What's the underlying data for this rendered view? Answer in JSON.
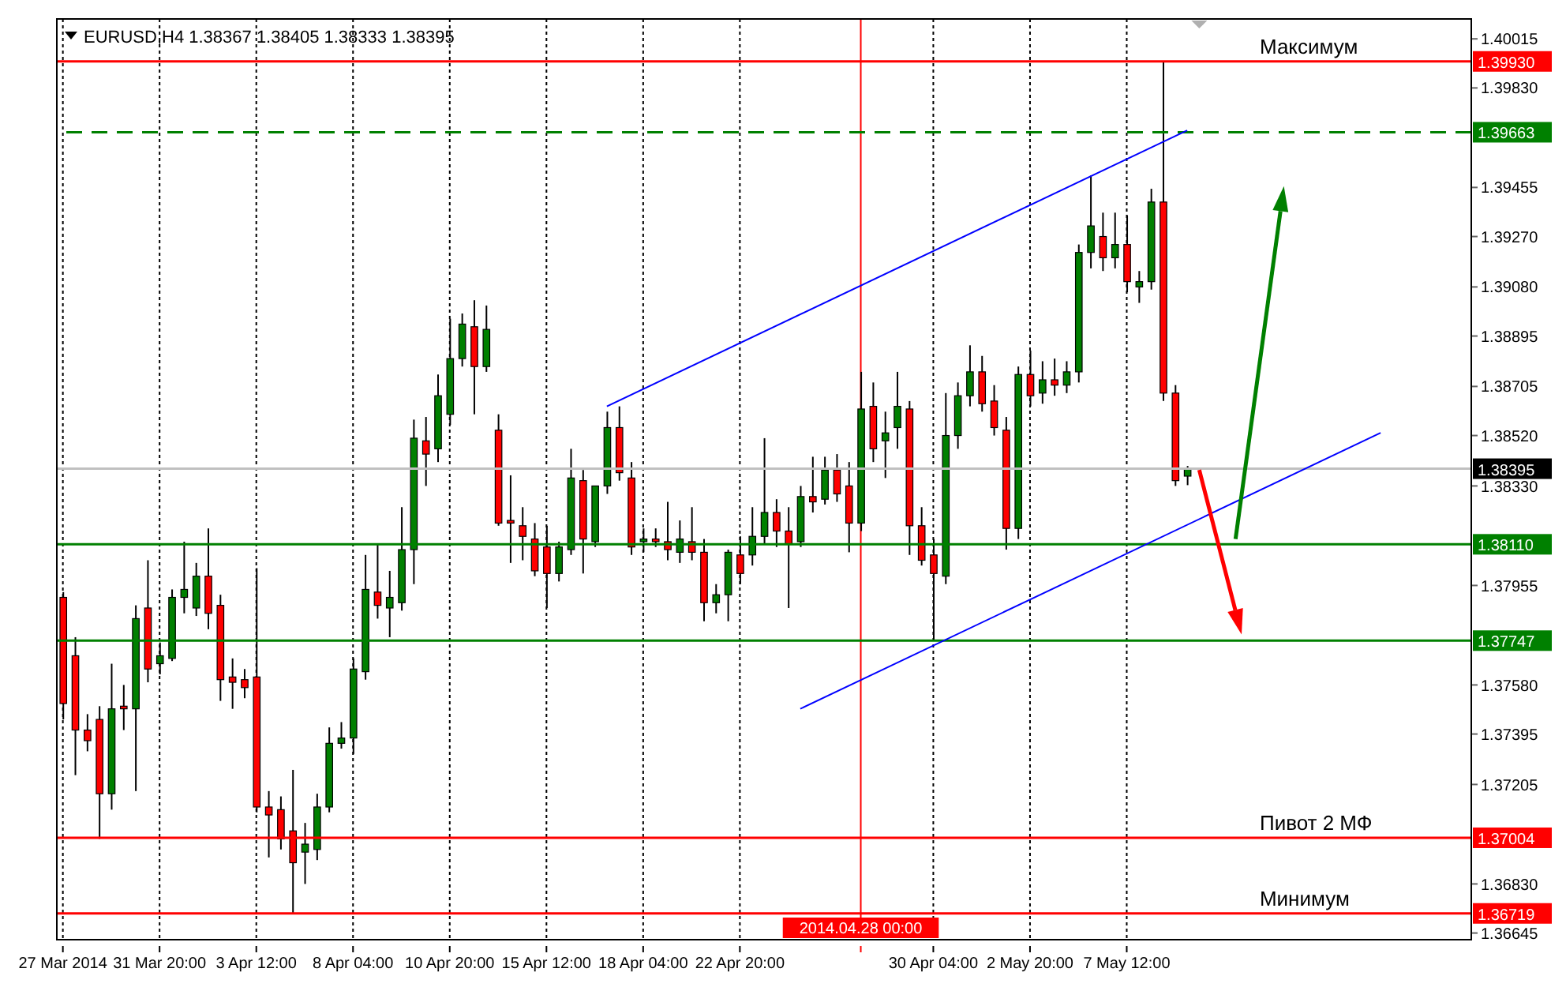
{
  "chart_data": {
    "type": "candlestick",
    "title": "EURUSD,H4 1.38367 1.38405 1.38333 1.38395",
    "categories": [
      "27 Mar 2014",
      null,
      null,
      null,
      null,
      null,
      null,
      null,
      "31 Mar 20:00",
      null,
      null,
      null,
      null,
      null,
      null,
      null,
      "3 Apr 12:00",
      null,
      null,
      null,
      null,
      null,
      null,
      null,
      "8 Apr 04:00",
      null,
      null,
      null,
      null,
      null,
      null,
      null,
      "10 Apr 20:00",
      null,
      null,
      null,
      null,
      null,
      null,
      null,
      "15 Apr 12:00",
      null,
      null,
      null,
      null,
      null,
      null,
      null,
      "18 Apr 04:00",
      null,
      null,
      null,
      null,
      null,
      null,
      null,
      "22 Apr 20:00",
      null,
      null,
      null,
      null,
      null,
      null,
      null,
      null,
      null,
      "2014.04.28 00:00",
      null,
      null,
      null,
      null,
      null,
      "30 Apr 04:00",
      null,
      null,
      null,
      null,
      null,
      null,
      null,
      "2 May 20:00",
      null,
      null,
      null,
      null,
      null,
      null,
      null,
      "7 May 12:00",
      null,
      null,
      null,
      null,
      null,
      null,
      null,
      null,
      null,
      null,
      null,
      null,
      null,
      null,
      null,
      null,
      null,
      null,
      null,
      null,
      null,
      null,
      null,
      null,
      null,
      null,
      null,
      null
    ],
    "ohlc": [
      [
        1.3791,
        1.3793,
        1.3745,
        1.3751
      ],
      [
        1.3769,
        1.3776,
        1.3724,
        1.3741
      ],
      [
        1.3741,
        1.3747,
        1.3733,
        1.3737
      ],
      [
        1.3745,
        1.375,
        1.37,
        1.3717
      ],
      [
        1.3717,
        1.3766,
        1.3711,
        1.3749
      ],
      [
        1.375,
        1.3758,
        1.3741,
        1.3749
      ],
      [
        1.3749,
        1.3788,
        1.3718,
        1.3783
      ],
      [
        1.3787,
        1.3805,
        1.3759,
        1.3764
      ],
      [
        1.3766,
        1.3774,
        1.3762,
        1.3769
      ],
      [
        1.3768,
        1.3794,
        1.3767,
        1.3791
      ],
      [
        1.3791,
        1.3812,
        1.3785,
        1.3794
      ],
      [
        1.3787,
        1.3804,
        1.3784,
        1.3799
      ],
      [
        1.3799,
        1.3817,
        1.3779,
        1.3785
      ],
      [
        1.3788,
        1.3792,
        1.3752,
        1.376
      ],
      [
        1.3761,
        1.3768,
        1.3749,
        1.3759
      ],
      [
        1.376,
        1.3764,
        1.3753,
        1.3757
      ],
      [
        1.3761,
        1.3802,
        1.371,
        1.3712
      ],
      [
        1.3712,
        1.3718,
        1.3693,
        1.3709
      ],
      [
        1.3711,
        1.3716,
        1.3696,
        1.37
      ],
      [
        1.3703,
        1.3726,
        1.3672,
        1.3691
      ],
      [
        1.3695,
        1.3706,
        1.3683,
        1.3698
      ],
      [
        1.3696,
        1.3717,
        1.3692,
        1.3712
      ],
      [
        1.3712,
        1.3742,
        1.371,
        1.3736
      ],
      [
        1.3736,
        1.3744,
        1.3734,
        1.3738
      ],
      [
        1.3738,
        1.3768,
        1.3732,
        1.3764
      ],
      [
        1.3763,
        1.3807,
        1.376,
        1.3794
      ],
      [
        1.3793,
        1.3811,
        1.3783,
        1.3788
      ],
      [
        1.3787,
        1.3801,
        1.3776,
        1.3791
      ],
      [
        1.3789,
        1.3825,
        1.3786,
        1.3809
      ],
      [
        1.3809,
        1.3858,
        1.3796,
        1.3851
      ],
      [
        1.385,
        1.3859,
        1.3833,
        1.3845
      ],
      [
        1.3847,
        1.3875,
        1.3842,
        1.3867
      ],
      [
        1.386,
        1.3896,
        1.3856,
        1.3881
      ],
      [
        1.3881,
        1.3898,
        1.3878,
        1.3894
      ],
      [
        1.3893,
        1.3903,
        1.386,
        1.3878
      ],
      [
        1.3878,
        1.3901,
        1.3876,
        1.3892
      ],
      [
        1.3854,
        1.386,
        1.3818,
        1.3819
      ],
      [
        1.382,
        1.3837,
        1.3804,
        1.3819
      ],
      [
        1.3818,
        1.3825,
        1.3805,
        1.3814
      ],
      [
        1.3813,
        1.3819,
        1.3799,
        1.3801
      ],
      [
        1.381,
        1.3818,
        1.3787,
        1.38
      ],
      [
        1.38,
        1.3812,
        1.3797,
        1.381
      ],
      [
        1.3809,
        1.3847,
        1.3807,
        1.3836
      ],
      [
        1.3835,
        1.3839,
        1.38,
        1.3813
      ],
      [
        1.3812,
        1.3833,
        1.381,
        1.3833
      ],
      [
        1.3833,
        1.3861,
        1.383,
        1.3855
      ],
      [
        1.3855,
        1.3863,
        1.3835,
        1.3838
      ],
      [
        1.3836,
        1.3842,
        1.3807,
        1.381
      ],
      [
        1.3812,
        1.3817,
        1.3808,
        1.3813
      ],
      [
        1.3813,
        1.3817,
        1.381,
        1.3812
      ],
      [
        1.3812,
        1.3827,
        1.3805,
        1.3809
      ],
      [
        1.3808,
        1.382,
        1.3804,
        1.3813
      ],
      [
        1.3812,
        1.3825,
        1.3805,
        1.3808
      ],
      [
        1.3808,
        1.3813,
        1.3782,
        1.3789
      ],
      [
        1.3789,
        1.3796,
        1.3785,
        1.3792
      ],
      [
        1.3792,
        1.3809,
        1.3782,
        1.3808
      ],
      [
        1.3807,
        1.3814,
        1.3796,
        1.38
      ],
      [
        1.3807,
        1.3825,
        1.3803,
        1.3814
      ],
      [
        1.3814,
        1.3851,
        1.3811,
        1.3823
      ],
      [
        1.3823,
        1.3828,
        1.381,
        1.3816
      ],
      [
        1.3816,
        1.3825,
        1.3787,
        1.3811
      ],
      [
        1.3812,
        1.3833,
        1.381,
        1.3829
      ],
      [
        1.3829,
        1.3844,
        1.3823,
        1.3827
      ],
      [
        1.3828,
        1.3844,
        1.3826,
        1.3839
      ],
      [
        1.3839,
        1.3845,
        1.3827,
        1.383
      ],
      [
        1.3833,
        1.3842,
        1.3808,
        1.3819
      ],
      [
        1.3819,
        1.3876,
        1.3816,
        1.3862
      ],
      [
        1.3863,
        1.3872,
        1.3842,
        1.3847
      ],
      [
        1.385,
        1.3861,
        1.3836,
        1.3853
      ],
      [
        1.3855,
        1.3876,
        1.3847,
        1.3863
      ],
      [
        1.3862,
        1.3865,
        1.3807,
        1.3818
      ],
      [
        1.3818,
        1.3825,
        1.3803,
        1.3805
      ],
      [
        1.3807,
        1.3813,
        1.3775,
        1.38
      ],
      [
        1.3799,
        1.3868,
        1.3796,
        1.3852
      ],
      [
        1.3852,
        1.3872,
        1.3847,
        1.3867
      ],
      [
        1.3867,
        1.3886,
        1.3863,
        1.3876
      ],
      [
        1.3876,
        1.3882,
        1.3861,
        1.3864
      ],
      [
        1.3865,
        1.3871,
        1.3852,
        1.3855
      ],
      [
        1.3854,
        1.3859,
        1.3809,
        1.3817
      ],
      [
        1.3817,
        1.3878,
        1.3813,
        1.3875
      ],
      [
        1.3875,
        1.3884,
        1.3863,
        1.3867
      ],
      [
        1.3868,
        1.388,
        1.3864,
        1.3873
      ],
      [
        1.3873,
        1.3881,
        1.3867,
        1.3871
      ],
      [
        1.3871,
        1.388,
        1.3868,
        1.3876
      ],
      [
        1.3876,
        1.3924,
        1.3872,
        1.3921
      ],
      [
        1.3921,
        1.395,
        1.3915,
        1.3931
      ],
      [
        1.3927,
        1.3936,
        1.3914,
        1.3919
      ],
      [
        1.3919,
        1.3936,
        1.3915,
        1.3924
      ],
      [
        1.3924,
        1.3935,
        1.3906,
        1.391
      ],
      [
        1.3908,
        1.3914,
        1.3902,
        1.391
      ],
      [
        1.391,
        1.3945,
        1.3907,
        1.394
      ],
      [
        1.394,
        1.3993,
        1.3865,
        1.3868
      ],
      [
        1.3868,
        1.3871,
        1.3833,
        1.3835
      ],
      [
        1.38367,
        1.38405,
        1.38333,
        1.38395
      ],
      null,
      null,
      null,
      null,
      null,
      null,
      null,
      null,
      null,
      null,
      null,
      null,
      null,
      null,
      null,
      null,
      null,
      null,
      null,
      null,
      null,
      null,
      null
    ],
    "colors": [
      "#ff0000",
      "#ff0000",
      "#ff0000",
      "#ff0000",
      "#008000",
      "#ff0000",
      "#008000",
      "#ff0000",
      "#008000",
      "#008000",
      "#008000",
      "#008000",
      "#ff0000",
      "#ff0000",
      "#ff0000",
      "#ff0000",
      "#ff0000",
      "#ff0000",
      "#ff0000",
      "#ff0000",
      "#008000",
      "#008000",
      "#008000",
      "#008000",
      "#008000",
      "#008000",
      "#ff0000",
      "#008000",
      "#008000",
      "#008000",
      "#ff0000",
      "#008000",
      "#008000",
      "#008000",
      "#ff0000",
      "#008000",
      "#ff0000",
      "#ff0000",
      "#ff0000",
      "#ff0000",
      "#ff0000",
      "#008000",
      "#008000",
      "#ff0000",
      "#008000",
      "#008000",
      "#ff0000",
      "#ff0000",
      "#008000",
      "#ff0000",
      "#ff0000",
      "#008000",
      "#ff0000",
      "#ff0000",
      "#008000",
      "#008000",
      "#ff0000",
      "#008000",
      "#008000",
      "#ff0000",
      "#ff0000",
      "#008000",
      "#ff0000",
      "#008000",
      "#ff0000",
      "#ff0000",
      "#008000",
      "#ff0000",
      "#008000",
      "#008000",
      "#ff0000",
      "#ff0000",
      "#ff0000",
      "#008000",
      "#008000",
      "#008000",
      "#ff0000",
      "#ff0000",
      "#ff0000",
      "#008000",
      "#ff0000",
      "#008000",
      "#ff0000",
      "#008000",
      "#008000",
      "#008000",
      "#ff0000",
      "#008000",
      "#ff0000",
      "#008000",
      "#008000",
      "#ff0000",
      "#ff0000",
      "#008000",
      null,
      null,
      null,
      null,
      null,
      null,
      null,
      null,
      null,
      null,
      null,
      null,
      null,
      null,
      null,
      null,
      null,
      null,
      null,
      null,
      null,
      null,
      null
    ],
    "series": [
      {
        "type": "line",
        "color": "#0000ff",
        "values": [
          null,
          null,
          null,
          null,
          null,
          null,
          null,
          null,
          null,
          null,
          null,
          null,
          null,
          null,
          null,
          null,
          null,
          null,
          null,
          null,
          null,
          null,
          null,
          null,
          null,
          null,
          null,
          null,
          null,
          null,
          null,
          null,
          null,
          null,
          null,
          null,
          null,
          null,
          null,
          null,
          null,
          null,
          null,
          null,
          null,
          1.3863,
          null,
          null,
          null,
          null,
          null,
          null,
          null,
          null,
          null,
          null,
          null,
          null,
          null,
          null,
          null,
          null,
          null,
          null,
          null,
          null,
          null,
          null,
          null,
          null,
          null,
          null,
          null,
          null,
          null,
          null,
          null,
          null,
          null,
          null,
          null,
          null,
          null,
          null,
          null,
          null,
          null,
          null,
          null,
          null,
          null,
          null,
          null,
          1.3967,
          null,
          null,
          null,
          null,
          null,
          null,
          null,
          null,
          null,
          null,
          null,
          null,
          null,
          null,
          null,
          null,
          null,
          null,
          null,
          null,
          null,
          null,
          null
        ]
      },
      {
        "type": "line",
        "color": "#0000ff",
        "values": [
          null,
          null,
          null,
          null,
          null,
          null,
          null,
          null,
          null,
          null,
          null,
          null,
          null,
          null,
          null,
          null,
          null,
          null,
          null,
          null,
          null,
          null,
          null,
          null,
          null,
          null,
          null,
          null,
          null,
          null,
          null,
          null,
          null,
          null,
          null,
          null,
          null,
          null,
          null,
          null,
          null,
          null,
          null,
          null,
          null,
          null,
          null,
          null,
          null,
          null,
          null,
          null,
          null,
          null,
          null,
          null,
          null,
          null,
          null,
          null,
          null,
          1.3749,
          null,
          null,
          null,
          null,
          null,
          null,
          null,
          null,
          null,
          null,
          null,
          null,
          null,
          null,
          null,
          null,
          null,
          null,
          null,
          null,
          null,
          null,
          null,
          null,
          null,
          null,
          null,
          null,
          null,
          null,
          null,
          null,
          null,
          null,
          null,
          null,
          null,
          null,
          null,
          null,
          null,
          null,
          null,
          null,
          null,
          null,
          null,
          1.3853,
          null,
          null,
          null,
          null,
          null,
          null,
          null
        ]
      }
    ],
    "ylim": [
      1.3662,
      1.4009
    ],
    "yticks": [
      1.40015,
      {
        "value": 1.3983,
        "label": "1.39830"
      },
      1.39455,
      {
        "value": 1.3927,
        "label": "1.39270"
      },
      {
        "value": 1.3908,
        "label": "1.39080"
      },
      1.38895,
      1.38705,
      {
        "value": 1.3852,
        "label": "1.38520"
      },
      {
        "value": 1.3833,
        "label": "1.38330"
      },
      1.37955,
      {
        "value": 1.3758,
        "label": "1.37580"
      },
      1.37395,
      1.37205,
      {
        "value": 1.3683,
        "label": "1.36830"
      },
      1.36645
    ],
    "grid": "x",
    "annotations": [
      {
        "text": "Максимум",
        "y": 1.3993
      },
      {
        "text": "Пивот 2 МФ",
        "y": 1.37004
      },
      {
        "text": "Минимум",
        "y": 1.36719
      }
    ],
    "ref_lines": [
      {
        "axis": "y",
        "value": 1.3993,
        "label": "1.39930",
        "color": "#ff0000"
      },
      {
        "axis": "y",
        "value": 1.39663,
        "label": "1.39663",
        "color": "#008000",
        "line_style": "dashed"
      },
      {
        "axis": "y",
        "value": 1.38395,
        "label": "1.38395",
        "color": "#c0c0c0"
      },
      {
        "axis": "y",
        "value": 1.3811,
        "label": "1.38110",
        "color": "#008000"
      },
      {
        "axis": "y",
        "value": 1.37747,
        "label": "1.37747",
        "color": "#008000"
      },
      {
        "axis": "y",
        "value": 1.37004,
        "label": "1.37004",
        "color": "#ff0000"
      },
      {
        "axis": "y",
        "value": 1.36719,
        "label": "1.36719",
        "color": "#ff0000"
      },
      {
        "axis": "x",
        "value": "2014.04.28 00:00",
        "color": "#ff0000"
      }
    ]
  }
}
